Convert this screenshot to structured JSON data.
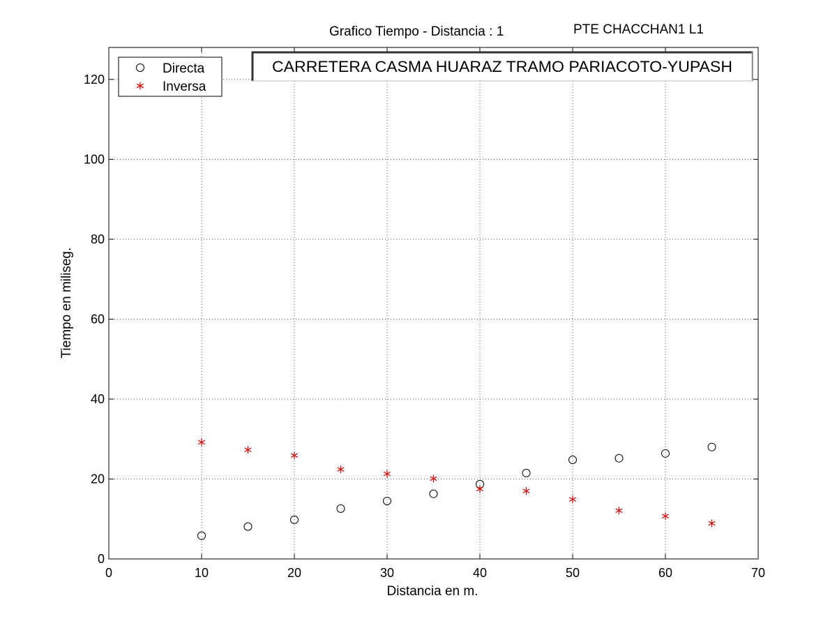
{
  "header": {
    "title": "Grafico Tiempo - Distancia :  1",
    "subtitle": "PTE CHACCHAN1 L1",
    "banner": "CARRETERA CASMA HUARAZ TRAMO PARIACOTO-YUPASH"
  },
  "colors": {
    "directa": "#000000",
    "inversa": "#cc1111",
    "grid": "#555555"
  },
  "chart_data": {
    "type": "scatter",
    "xlabel": "Distancia en m.",
    "ylabel": "Tiempo en miliseg.",
    "xlim": [
      0,
      70
    ],
    "ylim": [
      0,
      128
    ],
    "x_ticks": [
      0,
      10,
      20,
      30,
      40,
      50,
      60,
      70
    ],
    "y_ticks": [
      0,
      20,
      40,
      60,
      80,
      100,
      120
    ],
    "grid": true,
    "legend_position": "top-left",
    "series": [
      {
        "name": "Directa",
        "marker": "circle",
        "x": [
          10,
          15,
          20,
          25,
          30,
          35,
          40,
          45,
          50,
          55,
          60,
          65
        ],
        "y": [
          5.8,
          8.1,
          9.8,
          12.6,
          14.5,
          16.3,
          18.7,
          21.5,
          24.8,
          25.2,
          26.4,
          28.0
        ]
      },
      {
        "name": "Inversa",
        "marker": "star",
        "x": [
          10,
          15,
          20,
          25,
          30,
          35,
          40,
          45,
          50,
          55,
          60,
          65
        ],
        "y": [
          29.2,
          27.3,
          25.9,
          22.4,
          21.3,
          20.1,
          17.5,
          17.0,
          14.9,
          12.1,
          10.7,
          8.9
        ]
      }
    ]
  }
}
